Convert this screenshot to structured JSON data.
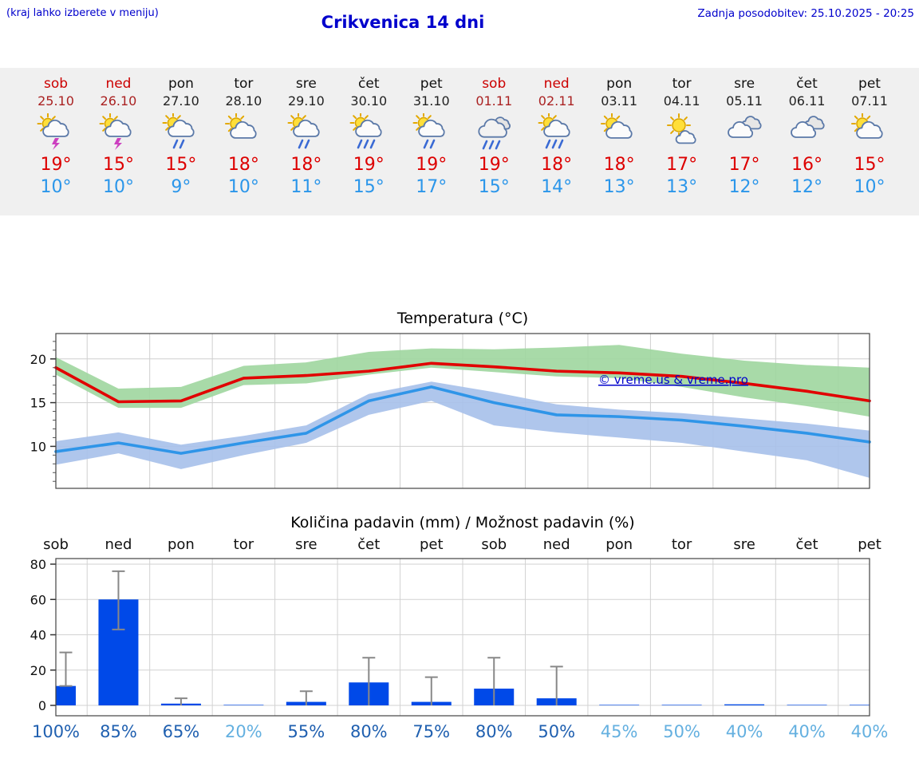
{
  "header": {
    "note": "(kraj lahko izberete v meniju)",
    "title": "Crikvenica 14 dni",
    "last_update": "Zadnja posodobitev: 25.10.2025 - 20:25"
  },
  "colors": {
    "accent_blue": "#0000cc",
    "weekend_red": "#cc0000",
    "weekend_date_red": "#aa2222",
    "hi_temp": "#dd0000",
    "lo_temp": "#2b96ea",
    "line_red": "#e10000",
    "line_blue": "#2f95e8",
    "band_green": "#9fd69f",
    "band_blue": "#a6c0ea",
    "bar_blue": "#0049e8",
    "percent_strong": "#2060b0",
    "percent_weak": "#64b0e0"
  },
  "days": [
    {
      "name": "sob",
      "date": "25.10",
      "weekend": true,
      "icon": "thunderstorm",
      "hi": "19°",
      "lo": "10°"
    },
    {
      "name": "ned",
      "date": "26.10",
      "weekend": true,
      "icon": "thunderstorm",
      "hi": "15°",
      "lo": "10°"
    },
    {
      "name": "pon",
      "date": "27.10",
      "weekend": false,
      "icon": "rain-showers",
      "hi": "15°",
      "lo": "9°"
    },
    {
      "name": "tor",
      "date": "28.10",
      "weekend": false,
      "icon": "partly-cloudy",
      "hi": "18°",
      "lo": "10°"
    },
    {
      "name": "sre",
      "date": "29.10",
      "weekend": false,
      "icon": "rain-showers",
      "hi": "18°",
      "lo": "11°"
    },
    {
      "name": "čet",
      "date": "30.10",
      "weekend": false,
      "icon": "heavy-showers",
      "hi": "19°",
      "lo": "15°"
    },
    {
      "name": "pet",
      "date": "31.10",
      "weekend": false,
      "icon": "rain-showers",
      "hi": "19°",
      "lo": "17°"
    },
    {
      "name": "sob",
      "date": "01.11",
      "weekend": true,
      "icon": "heavy-rain",
      "hi": "19°",
      "lo": "15°"
    },
    {
      "name": "ned",
      "date": "02.11",
      "weekend": true,
      "icon": "heavy-showers",
      "hi": "18°",
      "lo": "14°"
    },
    {
      "name": "pon",
      "date": "03.11",
      "weekend": false,
      "icon": "partly-cloudy",
      "hi": "18°",
      "lo": "13°"
    },
    {
      "name": "tor",
      "date": "04.11",
      "weekend": false,
      "icon": "mostly-sunny",
      "hi": "17°",
      "lo": "13°"
    },
    {
      "name": "sre",
      "date": "05.11",
      "weekend": false,
      "icon": "cloudy",
      "hi": "17°",
      "lo": "12°"
    },
    {
      "name": "čet",
      "date": "06.11",
      "weekend": false,
      "icon": "cloudy",
      "hi": "16°",
      "lo": "12°"
    },
    {
      "name": "pet",
      "date": "07.11",
      "weekend": false,
      "icon": "partly-cloudy",
      "hi": "15°",
      "lo": "10°"
    }
  ],
  "chart_data": [
    {
      "type": "line",
      "title": "Temperatura (°C)",
      "watermark": "© vreme.us & vreme.pro",
      "x_labels": [
        "sob",
        "ned",
        "pon",
        "tor",
        "sre",
        "čet",
        "pet",
        "sob",
        "ned",
        "pon",
        "tor",
        "sre",
        "čet",
        "pet"
      ],
      "yticks": [
        10,
        15,
        20
      ],
      "ylim": [
        5.2,
        22.9
      ],
      "grid": true,
      "series": [
        {
          "name": "max-temp",
          "color": "#e10000",
          "values": [
            19.0,
            15.1,
            15.2,
            17.8,
            18.1,
            18.6,
            19.5,
            19.1,
            18.6,
            18.4,
            18.0,
            17.2,
            16.3,
            15.2
          ]
        },
        {
          "name": "min-temp",
          "color": "#2f95e8",
          "values": [
            9.4,
            10.4,
            9.2,
            10.4,
            11.5,
            15.2,
            16.8,
            15.0,
            13.6,
            13.4,
            13.0,
            12.3,
            11.5,
            10.5
          ]
        }
      ],
      "bands": [
        {
          "name": "max-temp-range",
          "color": "#9fd69f",
          "upper": [
            20.2,
            16.6,
            16.8,
            19.2,
            19.6,
            20.8,
            21.2,
            21.1,
            21.3,
            21.6,
            20.6,
            19.8,
            19.3,
            19.0
          ],
          "lower": [
            18.2,
            14.4,
            14.4,
            17.0,
            17.2,
            18.2,
            19.0,
            18.5,
            18.0,
            17.8,
            16.8,
            15.6,
            14.6,
            13.4
          ]
        },
        {
          "name": "min-temp-range",
          "color": "#a6c0ea",
          "upper": [
            10.6,
            11.6,
            10.2,
            11.2,
            12.4,
            16.0,
            17.4,
            16.2,
            14.8,
            14.2,
            13.8,
            13.2,
            12.6,
            11.8
          ],
          "lower": [
            7.9,
            9.2,
            7.4,
            9.0,
            10.4,
            13.6,
            15.2,
            12.4,
            11.6,
            11.0,
            10.4,
            9.4,
            8.4,
            6.4
          ]
        }
      ]
    },
    {
      "type": "bar",
      "title": "Količina padavin (mm) / Možnost padavin (%)",
      "categories": [
        "sob",
        "ned",
        "pon",
        "tor",
        "sre",
        "čet",
        "pet",
        "sob",
        "ned",
        "pon",
        "tor",
        "sre",
        "čet",
        "pet"
      ],
      "yticks": [
        0,
        20,
        40,
        60,
        80
      ],
      "ylim": [
        0,
        80
      ],
      "bar_color": "#0049e8",
      "values": [
        11,
        60,
        1,
        0.3,
        2,
        13,
        2,
        9.5,
        4,
        0.3,
        0.3,
        0.6,
        0.3,
        0.3
      ],
      "whisker_low": [
        11,
        43,
        0,
        0,
        0,
        0,
        0,
        0,
        0,
        0,
        0,
        0,
        0,
        0
      ],
      "whisker_high": [
        30,
        76,
        4,
        0,
        8,
        27,
        16,
        27,
        22,
        0,
        0,
        0,
        0,
        0
      ],
      "probabilities": [
        {
          "label": "100%",
          "emphasis": "strong"
        },
        {
          "label": "85%",
          "emphasis": "strong"
        },
        {
          "label": "65%",
          "emphasis": "strong"
        },
        {
          "label": "20%",
          "emphasis": "weak"
        },
        {
          "label": "55%",
          "emphasis": "strong"
        },
        {
          "label": "80%",
          "emphasis": "strong"
        },
        {
          "label": "75%",
          "emphasis": "strong"
        },
        {
          "label": "80%",
          "emphasis": "strong"
        },
        {
          "label": "50%",
          "emphasis": "strong"
        },
        {
          "label": "45%",
          "emphasis": "weak"
        },
        {
          "label": "50%",
          "emphasis": "weak"
        },
        {
          "label": "40%",
          "emphasis": "weak"
        },
        {
          "label": "40%",
          "emphasis": "weak"
        },
        {
          "label": "40%",
          "emphasis": "weak"
        }
      ]
    }
  ]
}
